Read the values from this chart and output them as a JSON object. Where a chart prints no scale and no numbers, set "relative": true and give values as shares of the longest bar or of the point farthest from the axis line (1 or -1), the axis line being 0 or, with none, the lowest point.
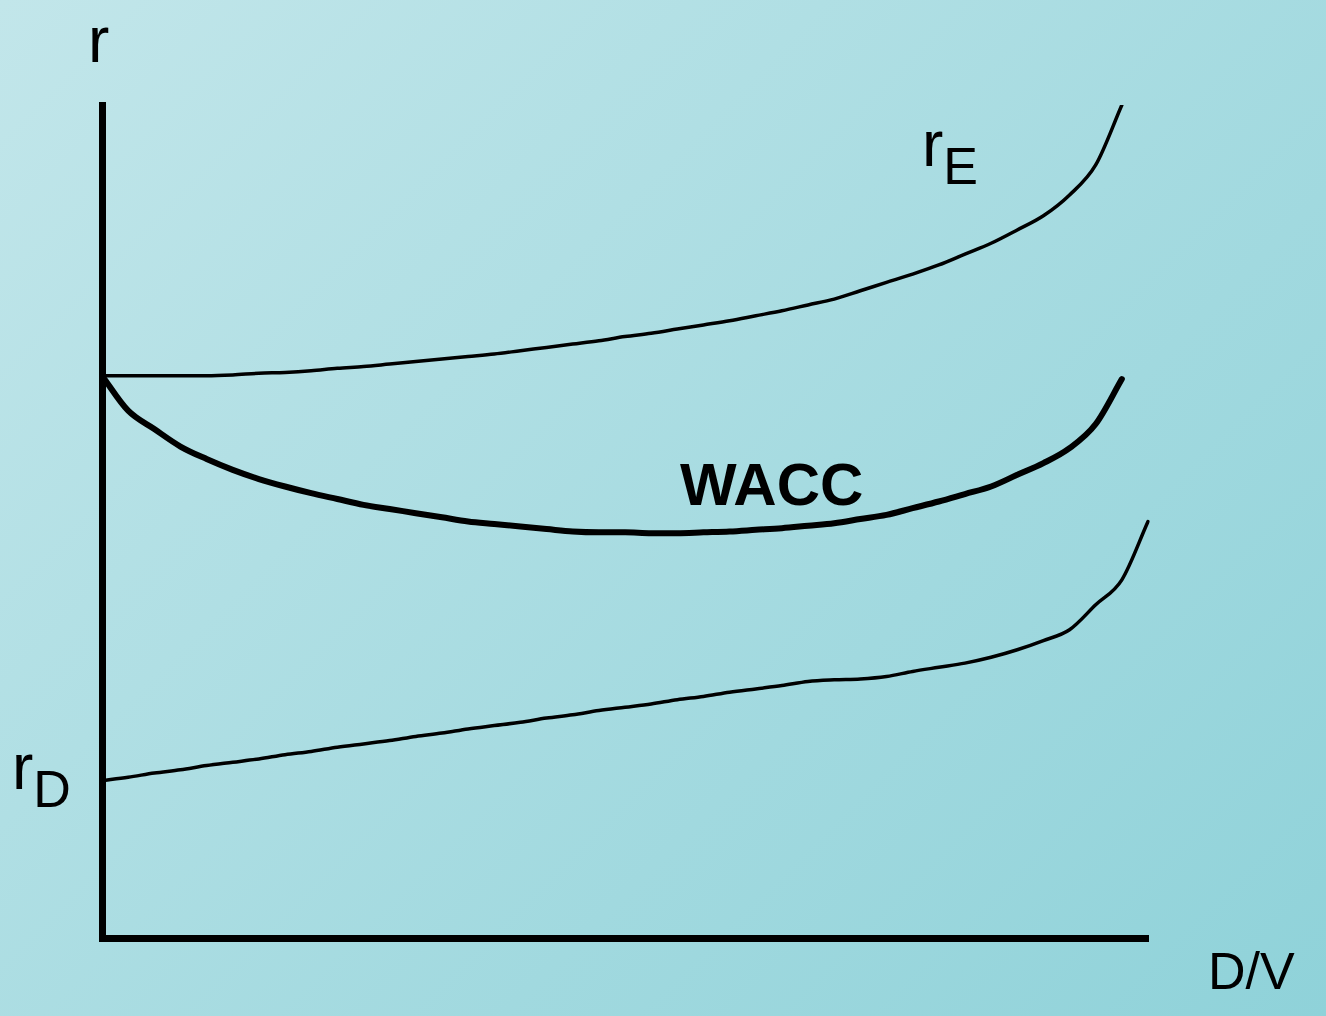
{
  "chart_data": {
    "type": "line",
    "relative": true,
    "ylabel": "r",
    "xlabel": "D/V",
    "legend": false,
    "grid": false,
    "marker": "none",
    "line_style": "solid",
    "categories": [
      null,
      null,
      null,
      null,
      null,
      null,
      null,
      null,
      null,
      null,
      null,
      null,
      null,
      null,
      null,
      null,
      null,
      null,
      null,
      null,
      null,
      null,
      null,
      null,
      null,
      null,
      null,
      null,
      null,
      null,
      null,
      null,
      null,
      null,
      null,
      null,
      null,
      null,
      null,
      null,
      null
    ],
    "series": [
      {
        "name": "r$_{E}$",
        "color": "#000000",
        "values": [
          0.675,
          0.675,
          0.675,
          0.675,
          0.675,
          0.676,
          0.678,
          0.679,
          0.681,
          0.684,
          0.686,
          0.689,
          0.692,
          0.695,
          0.698,
          0.701,
          0.705,
          0.709,
          0.713,
          0.717,
          0.722,
          0.726,
          0.731,
          0.736,
          0.741,
          0.747,
          0.753,
          0.76,
          0.767,
          0.777,
          0.787,
          0.797,
          0.808,
          0.821,
          0.834,
          0.85,
          0.867,
          0.892,
          0.928,
          1.0,
          null
        ]
      },
      {
        "name": "WACC",
        "color": "#000000",
        "values": [
          0.675,
          0.633,
          0.611,
          0.59,
          0.575,
          0.562,
          0.551,
          0.542,
          0.534,
          0.527,
          0.52,
          0.515,
          0.51,
          0.505,
          0.5,
          0.497,
          0.494,
          0.491,
          0.488,
          0.487,
          0.487,
          0.486,
          0.486,
          0.487,
          0.488,
          0.49,
          0.492,
          0.495,
          0.498,
          0.503,
          0.508,
          0.516,
          0.524,
          0.533,
          0.542,
          0.556,
          0.57,
          0.588,
          0.617,
          0.671,
          null
        ]
      },
      {
        "name": "r$_{D}$",
        "color": "#000000",
        "values": [
          0.189,
          0.193,
          0.198,
          0.202,
          0.207,
          0.211,
          0.215,
          0.22,
          0.224,
          0.229,
          0.233,
          0.237,
          0.242,
          0.246,
          0.251,
          0.255,
          0.259,
          0.264,
          0.268,
          0.273,
          0.277,
          0.281,
          0.286,
          0.29,
          0.295,
          0.299,
          0.303,
          0.308,
          0.31,
          0.311,
          0.314,
          0.32,
          0.325,
          0.33,
          0.337,
          0.346,
          0.357,
          0.37,
          0.4,
          0.43,
          0.5
        ]
      }
    ]
  }
}
